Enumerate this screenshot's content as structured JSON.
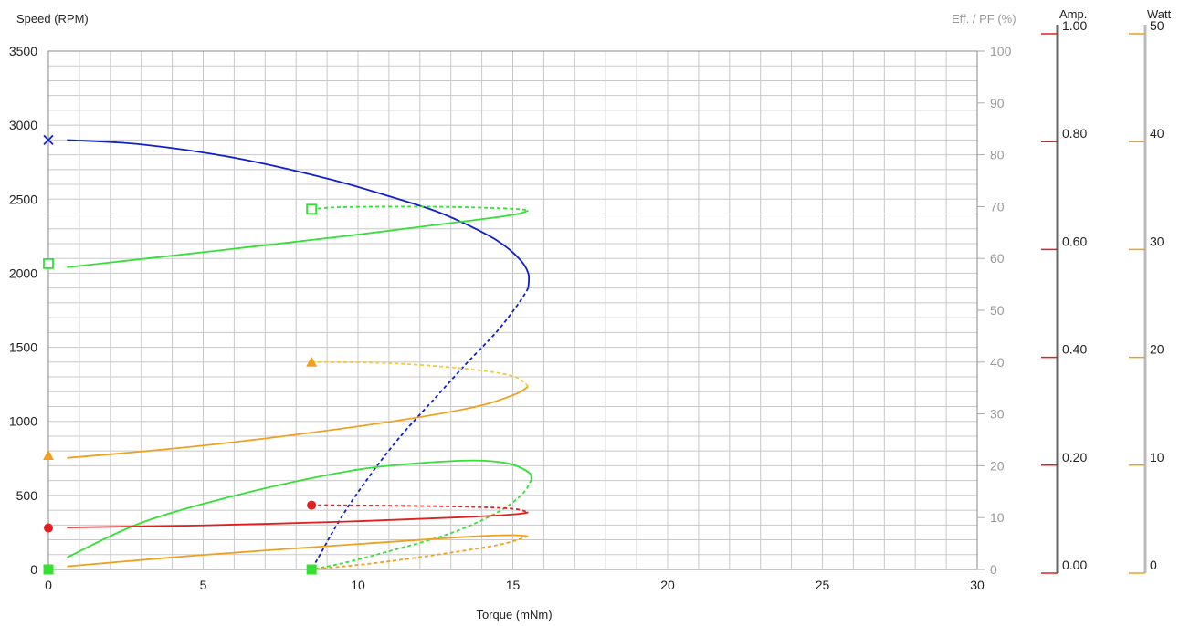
{
  "chart_data": {
    "type": "line",
    "xlabel": "Torque (mNm)",
    "ylabel": "Speed (RPM)",
    "y2label": "Eff. / PF (%)",
    "amp_label": "Amp.",
    "watt_label": "Watt",
    "xlim": [
      0,
      30
    ],
    "ylim": [
      0,
      3500
    ],
    "y2lim": [
      0,
      100
    ],
    "amp_lim": [
      0,
      1
    ],
    "watt_lim": [
      0,
      50
    ],
    "x_ticks": [
      "0",
      "5",
      "10",
      "15",
      "20",
      "25",
      "30"
    ],
    "y_ticks": [
      "0",
      "500",
      "1000",
      "1500",
      "2000",
      "2500",
      "3000",
      "3500"
    ],
    "y2_ticks": [
      "0",
      "10",
      "20",
      "30",
      "40",
      "50",
      "60",
      "70",
      "80",
      "90",
      "100"
    ],
    "amp_ticks": [
      "0.00",
      "0.20",
      "0.40",
      "0.60",
      "0.80",
      "1.00"
    ],
    "watt_ticks": [
      "0",
      "10",
      "20",
      "30",
      "40",
      "50"
    ],
    "grid": true,
    "colors": {
      "speed": "#1020c8",
      "efficiency": "#33e033",
      "current": "#e02020",
      "power": "#f0a020",
      "power_light": "#f5c842",
      "amp_axis": "#666666",
      "watt_axis": "#bbbbbb"
    },
    "series": [
      {
        "axis": "speed",
        "color": "speed",
        "style": "solid",
        "marker": "x",
        "marker_x": 0,
        "marker_y": 2900,
        "points": [
          [
            0.6,
            2900
          ],
          [
            3,
            2870
          ],
          [
            6,
            2780
          ],
          [
            9,
            2640
          ],
          [
            11,
            2520
          ],
          [
            12.5,
            2420
          ],
          [
            13.5,
            2330
          ],
          [
            14.5,
            2220
          ],
          [
            15.2,
            2100
          ],
          [
            15.5,
            2000
          ],
          [
            15.5,
            1900
          ]
        ]
      },
      {
        "axis": "speed",
        "color": "speed",
        "style": "dashed",
        "points": [
          [
            15.5,
            1900
          ],
          [
            15.2,
            1800
          ],
          [
            14.5,
            1610
          ],
          [
            13.5,
            1390
          ],
          [
            12.5,
            1160
          ],
          [
            11.5,
            930
          ],
          [
            10.8,
            750
          ],
          [
            10.2,
            580
          ],
          [
            9.7,
            430
          ],
          [
            9.2,
            260
          ],
          [
            8.8,
            110
          ],
          [
            8.5,
            0
          ]
        ]
      },
      {
        "axis": "y2",
        "color": "efficiency",
        "style": "solid",
        "marker": "square-open",
        "marker_x": 0,
        "marker_y": 59,
        "points": [
          [
            0.6,
            58.3
          ],
          [
            5,
            61.2
          ],
          [
            10,
            64.6
          ],
          [
            13.5,
            67.2
          ],
          [
            15,
            68.4
          ],
          [
            15.5,
            69.2
          ]
        ]
      },
      {
        "axis": "y2",
        "color": "efficiency",
        "style": "dashed",
        "marker": "square-open",
        "marker_x": 8.5,
        "marker_y": 69.5,
        "points": [
          [
            8.5,
            69.5
          ],
          [
            9.5,
            69.9
          ],
          [
            12,
            70.0
          ],
          [
            14,
            69.8
          ],
          [
            15.2,
            69.5
          ],
          [
            15.5,
            69.2
          ]
        ]
      },
      {
        "axis": "y2",
        "color": "efficiency",
        "style": "solid",
        "marker": "square-filled",
        "marker_x": 0,
        "marker_y": 0,
        "points": [
          [
            0.6,
            2.3
          ],
          [
            3,
            9
          ],
          [
            6,
            14.2
          ],
          [
            9,
            18.2
          ],
          [
            11,
            20.0
          ],
          [
            13.5,
            21.0
          ],
          [
            14.8,
            20.5
          ],
          [
            15.5,
            18.8
          ],
          [
            15.6,
            17.3
          ]
        ]
      },
      {
        "axis": "y2",
        "color": "efficiency",
        "style": "dashed",
        "marker": "square-filled",
        "marker_x": 8.5,
        "marker_y": 0,
        "points": [
          [
            15.6,
            17.3
          ],
          [
            15.3,
            14.5
          ],
          [
            14.5,
            11
          ],
          [
            13,
            7
          ],
          [
            11,
            3.5
          ],
          [
            9.5,
            1.2
          ],
          [
            8.5,
            0
          ]
        ]
      },
      {
        "axis": "y2",
        "color": "current",
        "style": "solid",
        "marker": "circle",
        "marker_x": 0,
        "marker_y": 8,
        "points": [
          [
            0.6,
            8.1
          ],
          [
            5,
            8.5
          ],
          [
            10,
            9.3
          ],
          [
            13.5,
            10.1
          ],
          [
            15,
            10.6
          ],
          [
            15.5,
            11.0
          ]
        ]
      },
      {
        "axis": "y2",
        "color": "current",
        "style": "dashed",
        "marker": "circle",
        "marker_x": 8.5,
        "marker_y": 12.4,
        "points": [
          [
            8.5,
            12.4
          ],
          [
            11,
            12.3
          ],
          [
            13.5,
            12.1
          ],
          [
            15,
            11.7
          ],
          [
            15.5,
            11.0
          ]
        ]
      },
      {
        "axis": "y2",
        "color": "power",
        "style": "solid",
        "marker": "triangle",
        "marker_x": 0,
        "marker_y": 22,
        "points": [
          [
            0.6,
            21.5
          ],
          [
            5,
            23.9
          ],
          [
            10,
            27.6
          ],
          [
            13.5,
            31.0
          ],
          [
            15,
            33.6
          ],
          [
            15.5,
            35.3
          ]
        ]
      },
      {
        "axis": "y2",
        "color": "power_light",
        "style": "dashed",
        "marker": "triangle",
        "marker_x": 8.5,
        "marker_y": 40,
        "points": [
          [
            8.5,
            40
          ],
          [
            11,
            39.8
          ],
          [
            13.5,
            38.7
          ],
          [
            15,
            37.3
          ],
          [
            15.5,
            35.3
          ]
        ]
      },
      {
        "axis": "y2",
        "color": "power",
        "style": "solid",
        "points": [
          [
            0.6,
            0.6
          ],
          [
            5,
            2.8
          ],
          [
            10,
            4.9
          ],
          [
            13.5,
            6.3
          ],
          [
            15,
            6.6
          ],
          [
            15.5,
            6.4
          ]
        ]
      },
      {
        "axis": "y2",
        "color": "power",
        "style": "dashed",
        "points": [
          [
            15.5,
            6.4
          ],
          [
            14.5,
            4.7
          ],
          [
            12.5,
            2.8
          ],
          [
            10.5,
            1.2
          ],
          [
            8.5,
            0
          ]
        ]
      }
    ]
  }
}
